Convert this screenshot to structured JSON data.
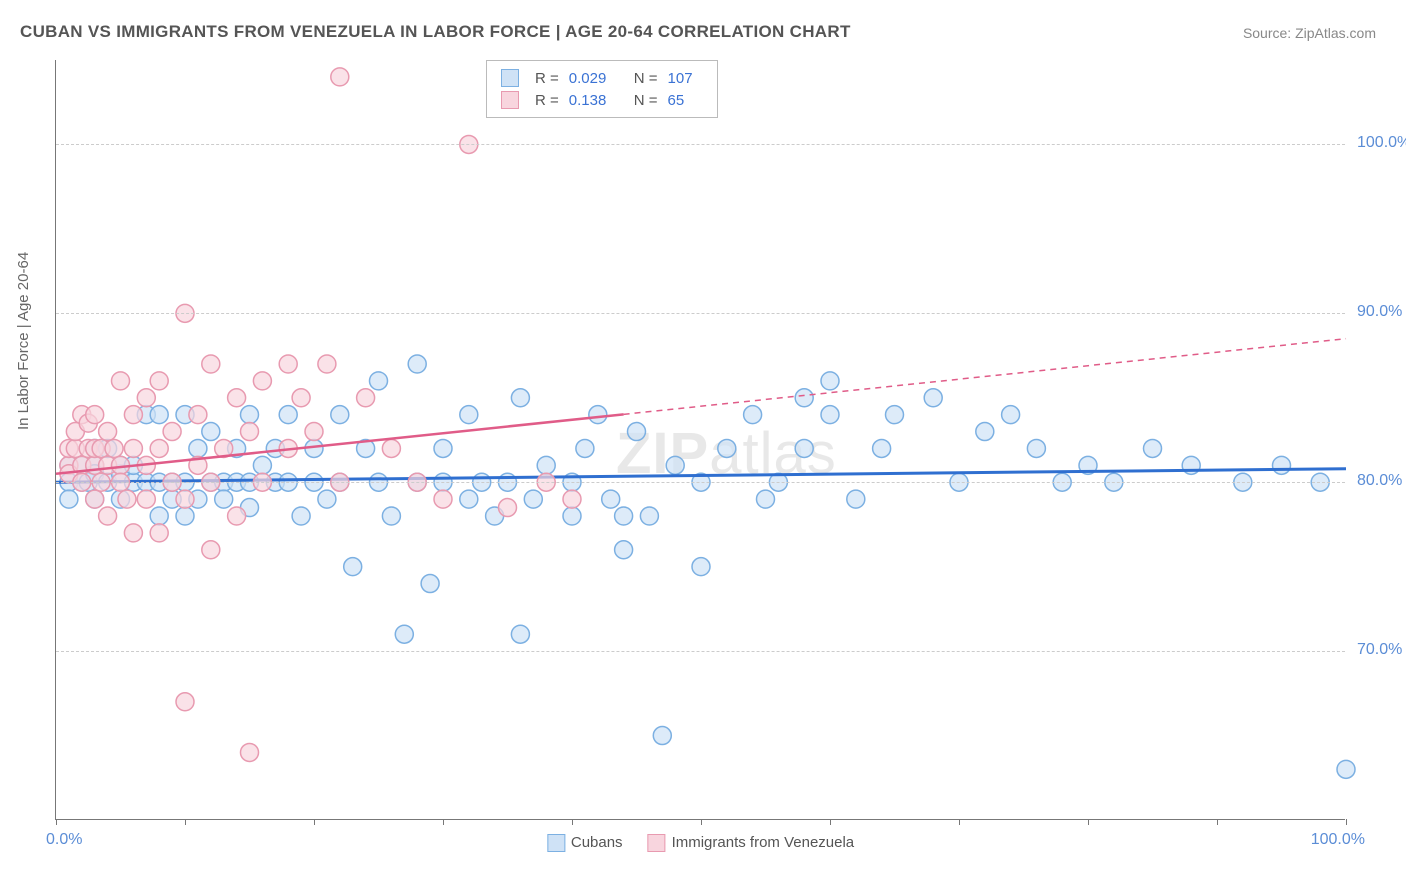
{
  "title": "CUBAN VS IMMIGRANTS FROM VENEZUELA IN LABOR FORCE | AGE 20-64 CORRELATION CHART",
  "source_label": "Source: ZipAtlas.com",
  "watermark": "ZIPatlas",
  "ylabel": "In Labor Force | Age 20-64",
  "chart": {
    "type": "scatter",
    "background_color": "#ffffff",
    "grid_color": "#cccccc",
    "axis_color": "#777777",
    "xlim": [
      0,
      100
    ],
    "ylim": [
      60,
      105
    ],
    "ygrid": [
      70,
      80,
      90,
      100
    ],
    "ytick_labels": [
      "70.0%",
      "80.0%",
      "90.0%",
      "100.0%"
    ],
    "xtick_positions": [
      0,
      10,
      20,
      30,
      40,
      50,
      60,
      70,
      80,
      90,
      100
    ],
    "xlabel_0": "0.0%",
    "xlabel_100": "100.0%",
    "marker_radius": 9,
    "marker_stroke_width": 1.5,
    "series": [
      {
        "name": "Cubans",
        "fill": "#cfe2f6",
        "stroke": "#7cb0e2",
        "fill_opacity": 0.7,
        "reg_color": "#2f6fd0",
        "reg_width": 3,
        "reg_solid_end": 100,
        "reg_y_start": 80.0,
        "reg_y_end": 80.8,
        "R": "0.029",
        "N": "107",
        "points": [
          [
            1,
            81
          ],
          [
            1,
            80
          ],
          [
            1,
            79
          ],
          [
            2,
            80
          ],
          [
            2,
            81
          ],
          [
            2.5,
            80
          ],
          [
            3,
            81
          ],
          [
            3,
            80.5
          ],
          [
            3,
            82
          ],
          [
            3,
            79
          ],
          [
            4,
            80
          ],
          [
            4,
            82
          ],
          [
            5,
            80.5
          ],
          [
            5,
            81
          ],
          [
            5,
            79
          ],
          [
            6,
            80
          ],
          [
            6,
            81
          ],
          [
            7,
            80
          ],
          [
            7,
            84
          ],
          [
            8,
            84
          ],
          [
            8,
            80
          ],
          [
            8,
            78
          ],
          [
            9,
            79
          ],
          [
            9,
            80
          ],
          [
            10,
            84
          ],
          [
            10,
            80
          ],
          [
            10,
            78
          ],
          [
            11,
            79
          ],
          [
            11,
            82
          ],
          [
            12,
            80
          ],
          [
            12,
            83
          ],
          [
            13,
            80
          ],
          [
            13,
            79
          ],
          [
            14,
            82
          ],
          [
            14,
            80
          ],
          [
            15,
            84
          ],
          [
            15,
            80
          ],
          [
            15,
            78.5
          ],
          [
            16,
            81
          ],
          [
            17,
            80
          ],
          [
            17,
            82
          ],
          [
            18,
            80
          ],
          [
            18,
            84
          ],
          [
            19,
            78
          ],
          [
            20,
            80
          ],
          [
            20,
            82
          ],
          [
            21,
            79
          ],
          [
            22,
            84
          ],
          [
            22,
            80
          ],
          [
            23,
            75
          ],
          [
            24,
            82
          ],
          [
            25,
            86
          ],
          [
            25,
            80
          ],
          [
            26,
            78
          ],
          [
            27,
            71
          ],
          [
            28,
            80
          ],
          [
            28,
            87
          ],
          [
            29,
            74
          ],
          [
            30,
            80
          ],
          [
            30,
            82
          ],
          [
            32,
            79
          ],
          [
            32,
            84
          ],
          [
            33,
            80
          ],
          [
            34,
            78
          ],
          [
            35,
            80
          ],
          [
            36,
            71
          ],
          [
            36,
            85
          ],
          [
            37,
            79
          ],
          [
            38,
            81
          ],
          [
            40,
            80
          ],
          [
            40,
            78
          ],
          [
            41,
            82
          ],
          [
            42,
            84
          ],
          [
            43,
            79
          ],
          [
            44,
            78
          ],
          [
            44,
            76
          ],
          [
            45,
            83
          ],
          [
            46,
            78
          ],
          [
            47,
            65
          ],
          [
            48,
            81
          ],
          [
            50,
            80
          ],
          [
            50,
            75
          ],
          [
            52,
            82
          ],
          [
            54,
            84
          ],
          [
            55,
            79
          ],
          [
            56,
            80
          ],
          [
            58,
            85
          ],
          [
            58,
            82
          ],
          [
            60,
            86
          ],
          [
            60,
            84
          ],
          [
            62,
            79
          ],
          [
            64,
            82
          ],
          [
            65,
            84
          ],
          [
            68,
            85
          ],
          [
            70,
            80
          ],
          [
            72,
            83
          ],
          [
            74,
            84
          ],
          [
            76,
            82
          ],
          [
            78,
            80
          ],
          [
            80,
            81
          ],
          [
            82,
            80
          ],
          [
            85,
            82
          ],
          [
            88,
            81
          ],
          [
            92,
            80
          ],
          [
            95,
            81
          ],
          [
            98,
            80
          ],
          [
            100,
            63
          ]
        ]
      },
      {
        "name": "Immigrants from Venezuela",
        "fill": "#f8d5de",
        "stroke": "#e89ab0",
        "fill_opacity": 0.7,
        "reg_color": "#e05c88",
        "reg_width": 2.5,
        "reg_solid_end": 44,
        "reg_y_start": 80.5,
        "reg_y_end": 88.5,
        "R": "0.138",
        "N": "65",
        "points": [
          [
            1,
            81
          ],
          [
            1,
            82
          ],
          [
            1,
            80.5
          ],
          [
            1.5,
            82
          ],
          [
            1.5,
            83
          ],
          [
            2,
            81
          ],
          [
            2,
            84
          ],
          [
            2,
            80
          ],
          [
            2.5,
            82
          ],
          [
            2.5,
            83.5
          ],
          [
            3,
            81
          ],
          [
            3,
            84
          ],
          [
            3,
            82
          ],
          [
            3,
            79
          ],
          [
            3.5,
            82
          ],
          [
            3.5,
            80
          ],
          [
            4,
            83
          ],
          [
            4,
            81
          ],
          [
            4,
            78
          ],
          [
            4.5,
            82
          ],
          [
            5,
            81
          ],
          [
            5,
            80
          ],
          [
            5,
            86
          ],
          [
            5.5,
            79
          ],
          [
            6,
            82
          ],
          [
            6,
            84
          ],
          [
            6,
            77
          ],
          [
            7,
            81
          ],
          [
            7,
            85
          ],
          [
            7,
            79
          ],
          [
            8,
            82
          ],
          [
            8,
            77
          ],
          [
            8,
            86
          ],
          [
            9,
            80
          ],
          [
            9,
            83
          ],
          [
            10,
            90
          ],
          [
            10,
            79
          ],
          [
            10,
            67
          ],
          [
            11,
            81
          ],
          [
            11,
            84
          ],
          [
            12,
            87
          ],
          [
            12,
            76
          ],
          [
            12,
            80
          ],
          [
            13,
            82
          ],
          [
            14,
            85
          ],
          [
            14,
            78
          ],
          [
            15,
            83
          ],
          [
            15,
            64
          ],
          [
            16,
            86
          ],
          [
            16,
            80
          ],
          [
            18,
            87
          ],
          [
            18,
            82
          ],
          [
            19,
            85
          ],
          [
            20,
            83
          ],
          [
            21,
            87
          ],
          [
            22,
            80
          ],
          [
            22,
            104
          ],
          [
            24,
            85
          ],
          [
            26,
            82
          ],
          [
            28,
            80
          ],
          [
            30,
            79
          ],
          [
            32,
            100
          ],
          [
            35,
            78.5
          ],
          [
            38,
            80
          ],
          [
            40,
            79
          ]
        ]
      }
    ],
    "legend_bottom": [
      {
        "label": "Cubans",
        "fill": "#cfe2f6",
        "stroke": "#7cb0e2"
      },
      {
        "label": "Immigrants from Venezuela",
        "fill": "#f8d5de",
        "stroke": "#e89ab0"
      }
    ]
  }
}
